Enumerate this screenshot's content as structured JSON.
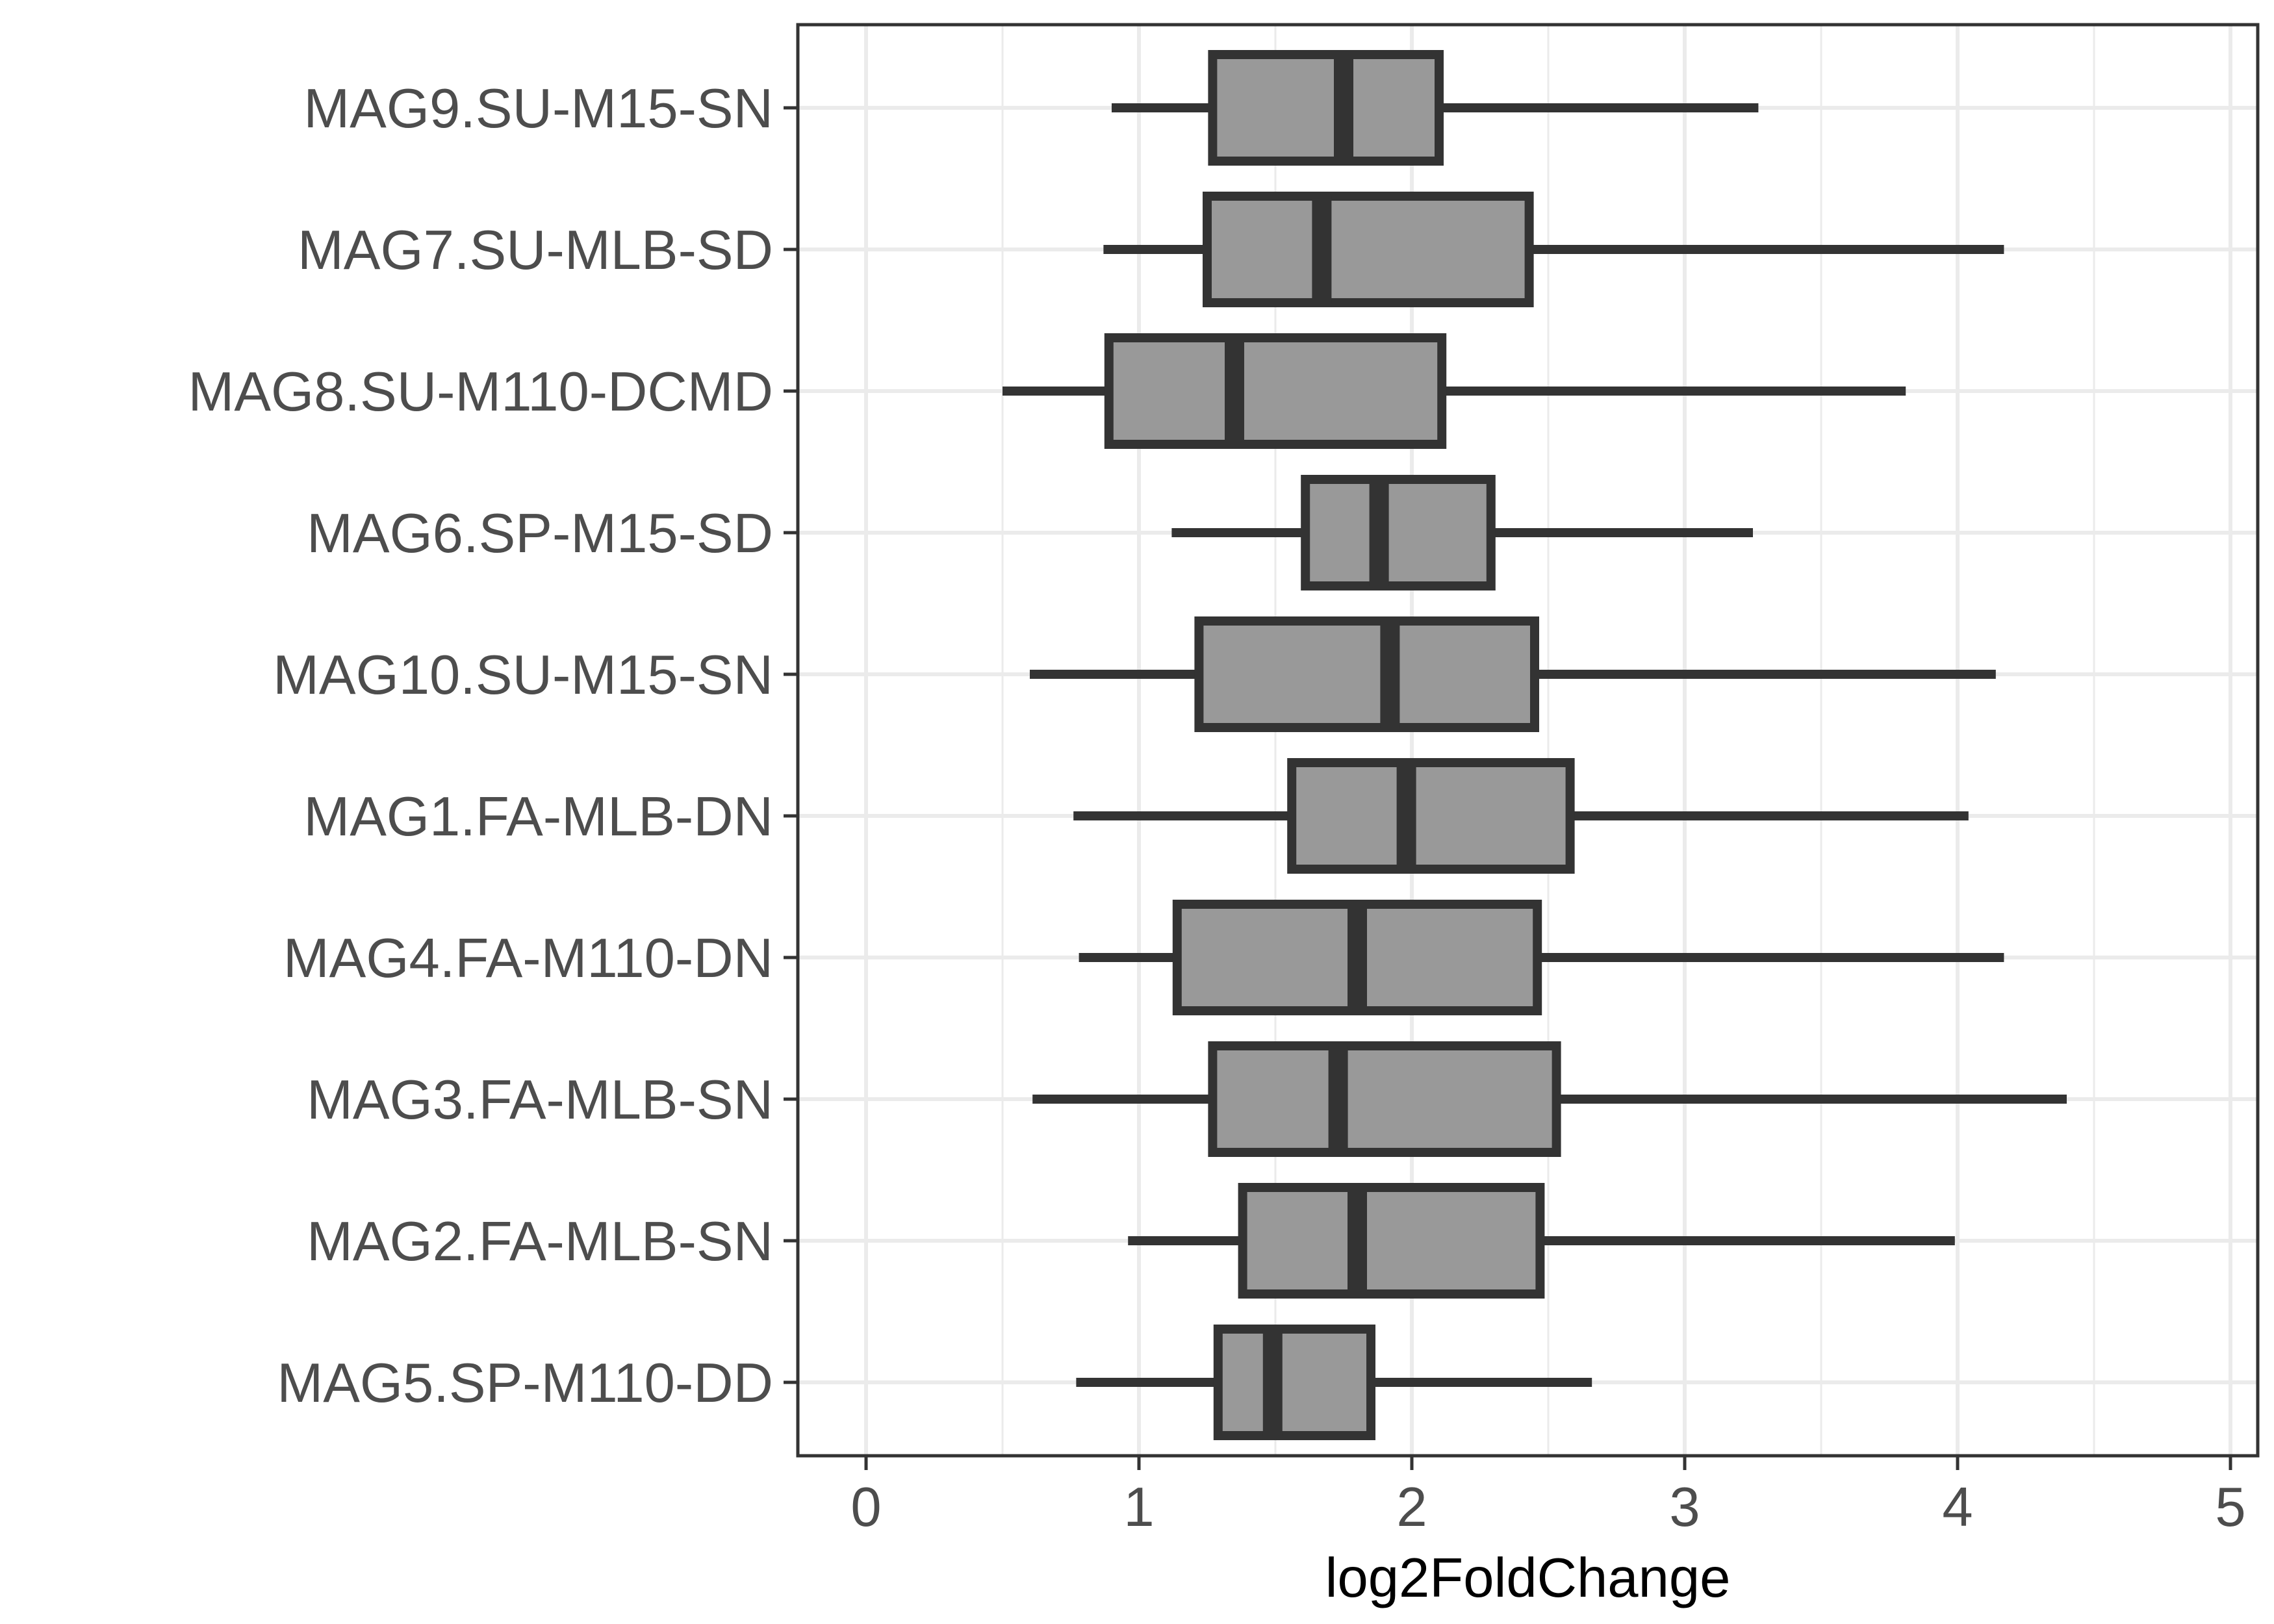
{
  "chart_data": {
    "type": "boxplot",
    "orientation": "horizontal",
    "title": "",
    "xlabel": "log2FoldChange",
    "ylabel": "",
    "xlim": [
      -0.25,
      5.1
    ],
    "xticks": [
      0,
      1,
      2,
      3,
      4,
      5
    ],
    "grid": true,
    "colors": {
      "box_fill": "#999999",
      "box_stroke": "#333333",
      "grid": "#ebebeb",
      "panel_border": "#333333"
    },
    "categories": [
      "MAG9.SU-M15-SN",
      "MAG7.SU-MLB-SD",
      "MAG8.SU-M110-DCMD",
      "MAG6.SP-M15-SD",
      "MAG10.SU-M15-SN",
      "MAG1.FA-MLB-DN",
      "MAG4.FA-M110-DN",
      "MAG3.FA-MLB-SN",
      "MAG2.FA-MLB-SN",
      "MAG5.SP-M110-DD"
    ],
    "boxes": [
      {
        "label": "MAG9.SU-M15-SN",
        "min": 0.9,
        "q1": 1.27,
        "median": 1.75,
        "q3": 2.1,
        "max": 3.27
      },
      {
        "label": "MAG7.SU-MLB-SD",
        "min": 0.87,
        "q1": 1.25,
        "median": 1.67,
        "q3": 2.43,
        "max": 4.17
      },
      {
        "label": "MAG8.SU-M110-DCMD",
        "min": 0.5,
        "q1": 0.89,
        "median": 1.35,
        "q3": 2.11,
        "max": 3.81
      },
      {
        "label": "MAG6.SP-M15-SD",
        "min": 1.12,
        "q1": 1.61,
        "median": 1.88,
        "q3": 2.29,
        "max": 3.25
      },
      {
        "label": "MAG10.SU-M15-SN",
        "min": 0.6,
        "q1": 1.22,
        "median": 1.92,
        "q3": 2.45,
        "max": 4.14
      },
      {
        "label": "MAG1.FA-MLB-DN",
        "min": 0.76,
        "q1": 1.56,
        "median": 1.98,
        "q3": 2.58,
        "max": 4.04
      },
      {
        "label": "MAG4.FA-M110-DN",
        "min": 0.78,
        "q1": 1.14,
        "median": 1.8,
        "q3": 2.46,
        "max": 4.17
      },
      {
        "label": "MAG3.FA-MLB-SN",
        "min": 0.61,
        "q1": 1.27,
        "median": 1.73,
        "q3": 2.53,
        "max": 4.4
      },
      {
        "label": "MAG2.FA-MLB-SN",
        "min": 0.96,
        "q1": 1.38,
        "median": 1.8,
        "q3": 2.47,
        "max": 3.99
      },
      {
        "label": "MAG5.SP-M110-DD",
        "min": 0.77,
        "q1": 1.29,
        "median": 1.49,
        "q3": 1.85,
        "max": 2.66
      }
    ]
  }
}
